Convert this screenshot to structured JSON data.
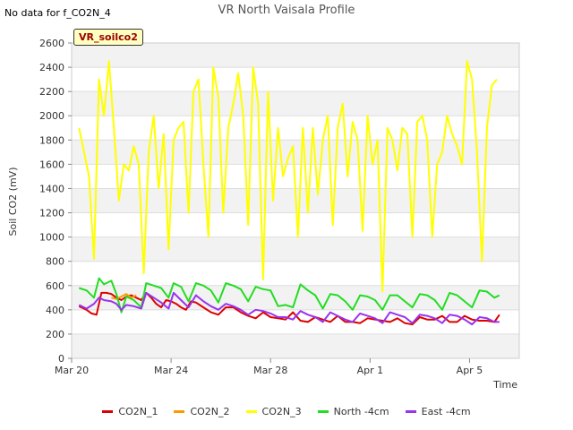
{
  "header": {
    "nodata": "No data for f_CO2N_4",
    "title": "VR North Vaisala Profile",
    "badge": "VR_soilco2"
  },
  "chart_data": {
    "type": "line",
    "title": "VR North Vaisala Profile",
    "xlabel": "Time",
    "ylabel": "Soil CO2 (mV)",
    "ylim": [
      0,
      2600
    ],
    "yticks": [
      0,
      200,
      400,
      600,
      800,
      1000,
      1200,
      1400,
      1600,
      1800,
      2000,
      2200,
      2400,
      2600
    ],
    "xlim_days": [
      0,
      18
    ],
    "xticks": [
      {
        "day": 0,
        "label": "Mar 20"
      },
      {
        "day": 4,
        "label": "Mar 24"
      },
      {
        "day": 8,
        "label": "Mar 28"
      },
      {
        "day": 12,
        "label": "Apr 1"
      },
      {
        "day": 16,
        "label": "Apr 5"
      }
    ],
    "grid": true,
    "legend_position": "bottom",
    "series": [
      {
        "name": "CO2N_1",
        "color": "#dd0000",
        "x": [
          0.3,
          0.6,
          0.8,
          1.0,
          1.2,
          1.4,
          1.6,
          1.8,
          2.0,
          2.2,
          2.4,
          2.6,
          2.8,
          3.0,
          3.2,
          3.4,
          3.6,
          3.8,
          4.0,
          4.2,
          4.4,
          4.6,
          4.8,
          5.0,
          5.3,
          5.6,
          5.9,
          6.2,
          6.5,
          6.8,
          7.1,
          7.4,
          7.7,
          8.0,
          8.3,
          8.6,
          8.9,
          9.2,
          9.5,
          9.8,
          10.1,
          10.4,
          10.7,
          11.0,
          11.3,
          11.6,
          11.9,
          12.2,
          12.5,
          12.8,
          13.1,
          13.4,
          13.7,
          14.0,
          14.3,
          14.6,
          14.9,
          15.2,
          15.5,
          15.8,
          16.1,
          16.4,
          16.7,
          17.0,
          17.2
        ],
        "y": [
          430,
          400,
          370,
          360,
          540,
          540,
          530,
          500,
          480,
          510,
          520,
          500,
          480,
          540,
          500,
          450,
          420,
          480,
          470,
          450,
          420,
          400,
          470,
          460,
          420,
          380,
          360,
          420,
          420,
          380,
          350,
          330,
          380,
          340,
          330,
          320,
          380,
          310,
          300,
          340,
          320,
          300,
          350,
          300,
          300,
          290,
          330,
          320,
          310,
          300,
          330,
          290,
          280,
          340,
          320,
          320,
          350,
          300,
          300,
          350,
          320,
          310,
          310,
          300,
          360
        ]
      },
      {
        "name": "CO2N_2",
        "color": "#ff9900",
        "x": [
          1.6,
          1.8,
          2.0,
          2.2,
          2.4,
          2.6
        ],
        "y": [
          500,
          490,
          510,
          530,
          500,
          520
        ]
      },
      {
        "name": "CO2N_3",
        "color": "#ffff00",
        "x": [
          0.3,
          0.5,
          0.7,
          0.9,
          1.1,
          1.3,
          1.5,
          1.7,
          1.9,
          2.1,
          2.3,
          2.5,
          2.7,
          2.9,
          3.1,
          3.3,
          3.5,
          3.7,
          3.9,
          4.1,
          4.3,
          4.5,
          4.7,
          4.9,
          5.1,
          5.3,
          5.5,
          5.7,
          5.9,
          6.1,
          6.3,
          6.5,
          6.7,
          6.9,
          7.1,
          7.3,
          7.5,
          7.7,
          7.9,
          8.1,
          8.3,
          8.5,
          8.7,
          8.9,
          9.1,
          9.3,
          9.5,
          9.7,
          9.9,
          10.1,
          10.3,
          10.5,
          10.7,
          10.9,
          11.1,
          11.3,
          11.5,
          11.7,
          11.9,
          12.1,
          12.3,
          12.5,
          12.7,
          12.9,
          13.1,
          13.3,
          13.5,
          13.7,
          13.9,
          14.1,
          14.3,
          14.5,
          14.7,
          14.9,
          15.1,
          15.3,
          15.5,
          15.7,
          15.9,
          16.1,
          16.3,
          16.5,
          16.7,
          16.9,
          17.1
        ],
        "y": [
          1900,
          1700,
          1500,
          820,
          2300,
          2000,
          2450,
          1900,
          1300,
          1600,
          1550,
          1750,
          1600,
          700,
          1700,
          2000,
          1400,
          1850,
          900,
          1800,
          1900,
          1950,
          1200,
          2200,
          2300,
          1600,
          1000,
          2400,
          2150,
          1200,
          1900,
          2100,
          2350,
          2000,
          1100,
          2400,
          2100,
          650,
          2200,
          1300,
          1900,
          1500,
          1650,
          1750,
          1000,
          1900,
          1200,
          1900,
          1350,
          1800,
          2000,
          1100,
          1900,
          2100,
          1500,
          1950,
          1800,
          1050,
          2000,
          1600,
          1800,
          550,
          1900,
          1800,
          1550,
          1900,
          1850,
          1000,
          1950,
          2000,
          1800,
          1000,
          1600,
          1700,
          2000,
          1850,
          1750,
          1600,
          2450,
          2300,
          1700,
          800,
          1900,
          2250,
          2300
        ]
      },
      {
        "name": "North -4cm",
        "color": "#22dd22",
        "x": [
          0.3,
          0.6,
          0.9,
          1.1,
          1.3,
          1.6,
          1.8,
          2.0,
          2.2,
          2.5,
          2.8,
          3.0,
          3.3,
          3.6,
          3.9,
          4.1,
          4.4,
          4.7,
          5.0,
          5.3,
          5.6,
          5.9,
          6.2,
          6.5,
          6.8,
          7.1,
          7.4,
          7.7,
          8.0,
          8.3,
          8.6,
          8.9,
          9.2,
          9.5,
          9.8,
          10.1,
          10.4,
          10.7,
          11.0,
          11.3,
          11.6,
          11.9,
          12.2,
          12.5,
          12.8,
          13.1,
          13.4,
          13.7,
          14.0,
          14.3,
          14.6,
          14.9,
          15.2,
          15.5,
          15.8,
          16.1,
          16.4,
          16.7,
          17.0,
          17.2
        ],
        "y": [
          580,
          560,
          500,
          660,
          610,
          640,
          530,
          380,
          510,
          480,
          420,
          620,
          600,
          580,
          500,
          620,
          590,
          470,
          620,
          600,
          560,
          460,
          620,
          600,
          570,
          470,
          590,
          570,
          560,
          430,
          440,
          420,
          610,
          560,
          520,
          410,
          530,
          520,
          470,
          400,
          520,
          510,
          480,
          400,
          520,
          520,
          470,
          420,
          530,
          520,
          480,
          400,
          540,
          520,
          470,
          420,
          560,
          550,
          500,
          520
        ]
      },
      {
        "name": "East -4cm",
        "color": "#9933ee",
        "x": [
          0.3,
          0.6,
          0.9,
          1.1,
          1.3,
          1.6,
          1.8,
          2.0,
          2.2,
          2.5,
          2.8,
          3.0,
          3.3,
          3.6,
          3.9,
          4.1,
          4.4,
          4.7,
          5.0,
          5.3,
          5.6,
          5.9,
          6.2,
          6.5,
          6.8,
          7.1,
          7.4,
          7.7,
          8.0,
          8.3,
          8.6,
          8.9,
          9.2,
          9.5,
          9.8,
          10.1,
          10.4,
          10.7,
          11.0,
          11.3,
          11.6,
          11.9,
          12.2,
          12.5,
          12.8,
          13.1,
          13.4,
          13.7,
          14.0,
          14.3,
          14.6,
          14.9,
          15.2,
          15.5,
          15.8,
          16.1,
          16.4,
          16.7,
          17.0,
          17.2
        ],
        "y": [
          440,
          410,
          450,
          500,
          480,
          470,
          450,
          400,
          440,
          430,
          410,
          540,
          500,
          460,
          410,
          540,
          480,
          420,
          520,
          470,
          430,
          400,
          450,
          430,
          400,
          360,
          400,
          390,
          370,
          340,
          340,
          320,
          390,
          360,
          340,
          300,
          380,
          350,
          320,
          300,
          370,
          350,
          330,
          290,
          380,
          360,
          340,
          290,
          360,
          350,
          330,
          290,
          360,
          350,
          320,
          280,
          340,
          330,
          300,
          300
        ]
      }
    ]
  }
}
